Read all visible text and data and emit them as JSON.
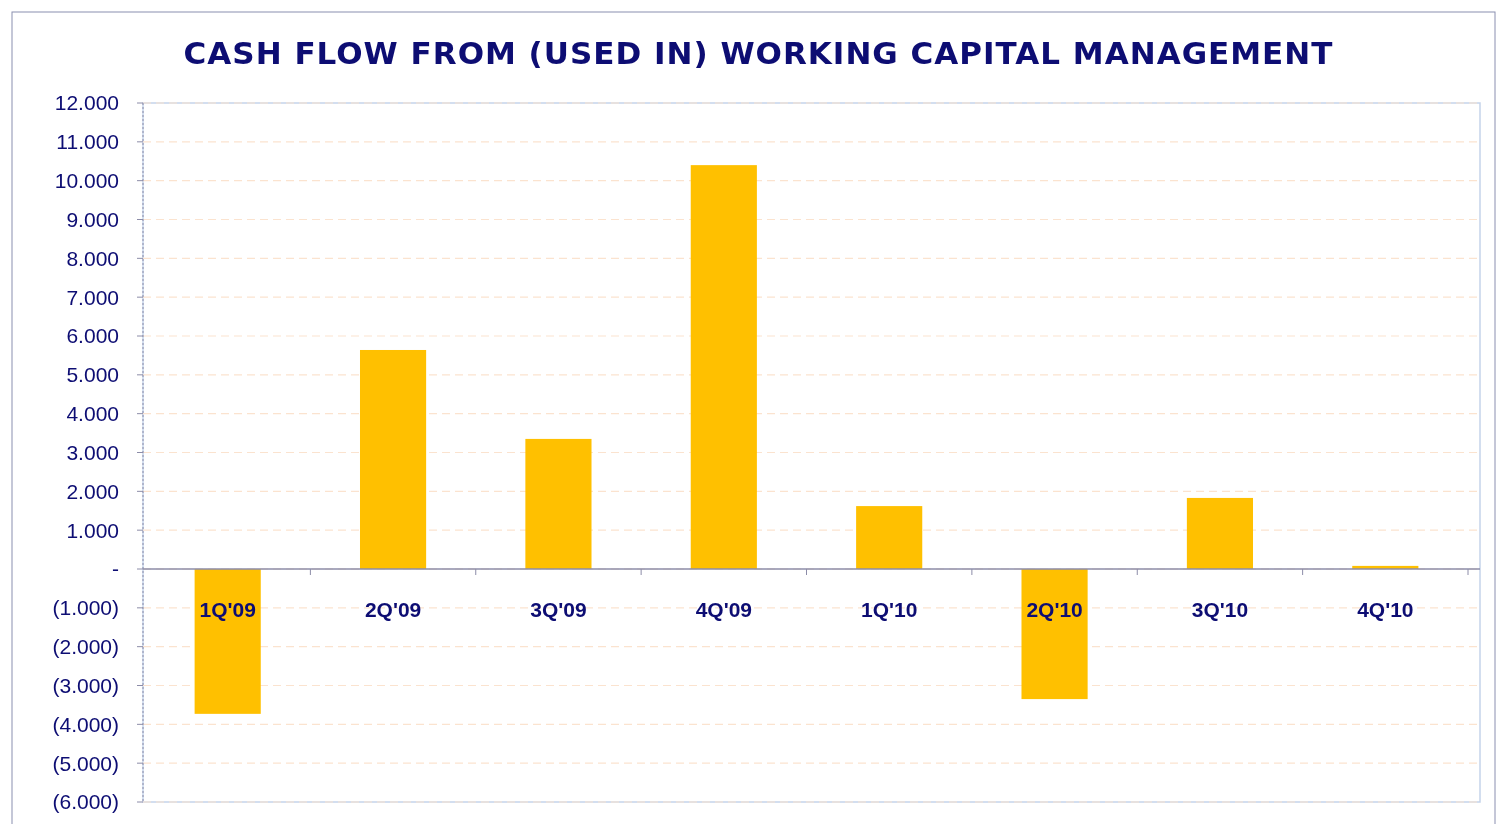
{
  "chart_data": {
    "type": "bar",
    "title": "CASH FLOW FROM (USED IN) WORKING CAPITAL MANAGEMENT",
    "categories": [
      "1Q'09",
      "2Q'09",
      "3Q'09",
      "4Q'09",
      "1Q'10",
      "2Q'10",
      "3Q'10",
      "4Q'10"
    ],
    "values": [
      -3730,
      5640,
      3350,
      10400,
      1620,
      -3350,
      1830,
      80
    ],
    "color": "#ffc000",
    "ylim": [
      -6000,
      12000
    ],
    "yticks": [
      {
        "value": -6000,
        "label": "(6.000)"
      },
      {
        "value": -5000,
        "label": "(5.000)"
      },
      {
        "value": -4000,
        "label": "(4.000)"
      },
      {
        "value": -3000,
        "label": "(3.000)"
      },
      {
        "value": -2000,
        "label": "(2.000)"
      },
      {
        "value": -1000,
        "label": "(1.000)"
      },
      {
        "value": 0,
        "label": "-"
      },
      {
        "value": 1000,
        "label": "1.000"
      },
      {
        "value": 2000,
        "label": "2.000"
      },
      {
        "value": 3000,
        "label": "3.000"
      },
      {
        "value": 4000,
        "label": "4.000"
      },
      {
        "value": 5000,
        "label": "5.000"
      },
      {
        "value": 6000,
        "label": "6.000"
      },
      {
        "value": 7000,
        "label": "7.000"
      },
      {
        "value": 8000,
        "label": "8.000"
      },
      {
        "value": 9000,
        "label": "9.000"
      },
      {
        "value": 10000,
        "label": "10.000"
      },
      {
        "value": 11000,
        "label": "11.000"
      },
      {
        "value": 12000,
        "label": "12.000"
      }
    ],
    "grid": "y"
  }
}
